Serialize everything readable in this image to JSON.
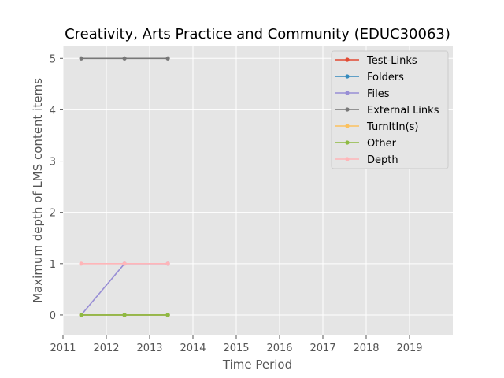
{
  "chart_data": {
    "type": "line",
    "title": "Creativity, Arts Practice and Community (EDUC30063)",
    "xlabel": "Time Period",
    "ylabel": "Maximum depth of LMS content items",
    "xlim": [
      2011,
      2020
    ],
    "ylim": [
      -0.4,
      5.25
    ],
    "x_ticks": [
      2011,
      2012,
      2013,
      2014,
      2015,
      2016,
      2017,
      2018,
      2019
    ],
    "y_ticks": [
      0,
      1,
      2,
      3,
      4,
      5
    ],
    "grid": true,
    "legend_position": "top-right",
    "x": [
      2011.42,
      2012.42,
      2013.42
    ],
    "series": [
      {
        "name": "Test-Links",
        "color": "#E24A33",
        "values": [
          0,
          0,
          0
        ]
      },
      {
        "name": "Folders",
        "color": "#348ABD",
        "values": [
          0,
          0,
          0
        ]
      },
      {
        "name": "Files",
        "color": "#988ED5",
        "values": [
          0,
          1,
          1
        ]
      },
      {
        "name": "External Links",
        "color": "#777777",
        "values": [
          5,
          5,
          5
        ]
      },
      {
        "name": "TurnItIn(s)",
        "color": "#FBC15E",
        "values": [
          0,
          0,
          0
        ]
      },
      {
        "name": "Other",
        "color": "#8EBA42",
        "values": [
          0,
          0,
          0
        ]
      },
      {
        "name": "Depth",
        "color": "#FFB5B8",
        "values": [
          1,
          1,
          1
        ]
      }
    ]
  }
}
